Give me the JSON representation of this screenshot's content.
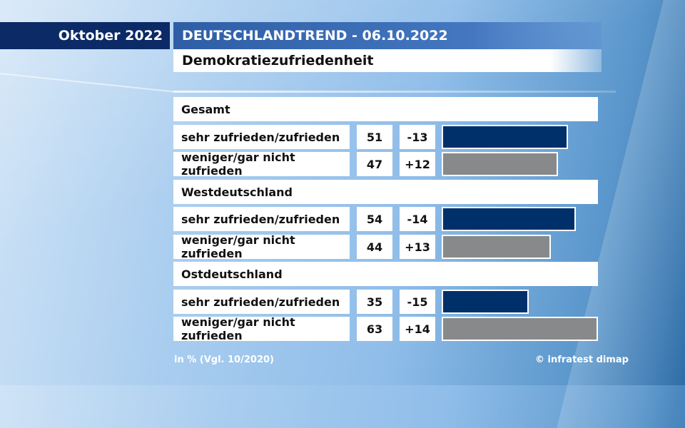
{
  "header": {
    "month": "Oktober 2022",
    "title": "DEUTSCHLANDTREND - 06.10.2022",
    "subtitle": "Demokratiezufriedenheit"
  },
  "footer": {
    "note": "in % (Vgl. 10/2020)",
    "source": "© infratest dimap"
  },
  "colors": {
    "satisfied": "#00306a",
    "dissatisfied": "#87898b",
    "month_bg": "#0b2a66",
    "title_bg": "#2e5ea5"
  },
  "chart_data": {
    "type": "bar",
    "title": "Demokratiezufriedenheit",
    "unit": "in %",
    "comparison": "Vgl. 10/2020",
    "xlim": [
      0,
      63
    ],
    "groups": [
      {
        "name": "Gesamt",
        "rows": [
          {
            "label": "sehr zufrieden/zufrieden",
            "value": 51,
            "change": "-13",
            "color": "#00306a"
          },
          {
            "label": "weniger/gar nicht zufrieden",
            "value": 47,
            "change": "+12",
            "color": "#87898b"
          }
        ]
      },
      {
        "name": "Westdeutschland",
        "rows": [
          {
            "label": "sehr zufrieden/zufrieden",
            "value": 54,
            "change": "-14",
            "color": "#00306a"
          },
          {
            "label": "weniger/gar nicht zufrieden",
            "value": 44,
            "change": "+13",
            "color": "#87898b"
          }
        ]
      },
      {
        "name": "Ostdeutschland",
        "rows": [
          {
            "label": "sehr zufrieden/zufrieden",
            "value": 35,
            "change": "-15",
            "color": "#00306a"
          },
          {
            "label": "weniger/gar nicht zufrieden",
            "value": 63,
            "change": "+14",
            "color": "#87898b"
          }
        ]
      }
    ]
  }
}
